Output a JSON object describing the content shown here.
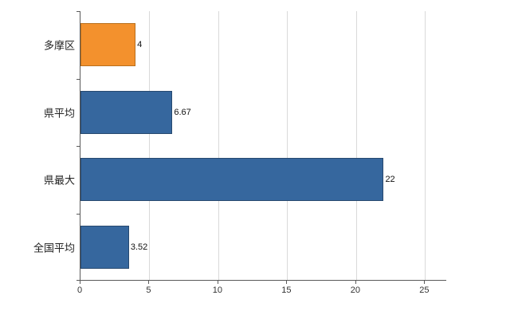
{
  "chart_data": {
    "type": "bar",
    "orientation": "horizontal",
    "title": "",
    "xlabel": "",
    "ylabel": "",
    "categories": [
      "多摩区",
      "県平均",
      "県最大",
      "全国平均"
    ],
    "values": [
      4,
      6.67,
      22,
      3.52
    ],
    "value_labels": [
      "4",
      "6.67",
      "22",
      "3.52"
    ],
    "bar_colors": [
      "#f3912d",
      "#36679e",
      "#36679e",
      "#36679e"
    ],
    "bar_border_colors": [
      "#b96f1c",
      "#27496f",
      "#27496f",
      "#27496f"
    ],
    "xlim": [
      0,
      26.6
    ],
    "xticks": [
      0,
      5,
      10,
      15,
      20,
      25
    ],
    "xtick_labels": [
      "0",
      "5",
      "10",
      "15",
      "20",
      "25"
    ],
    "grid": true,
    "legend": false,
    "background_color": "#ffffff",
    "gridline_color": "#d9d9d9",
    "axis_color": "#5a5a5a"
  }
}
